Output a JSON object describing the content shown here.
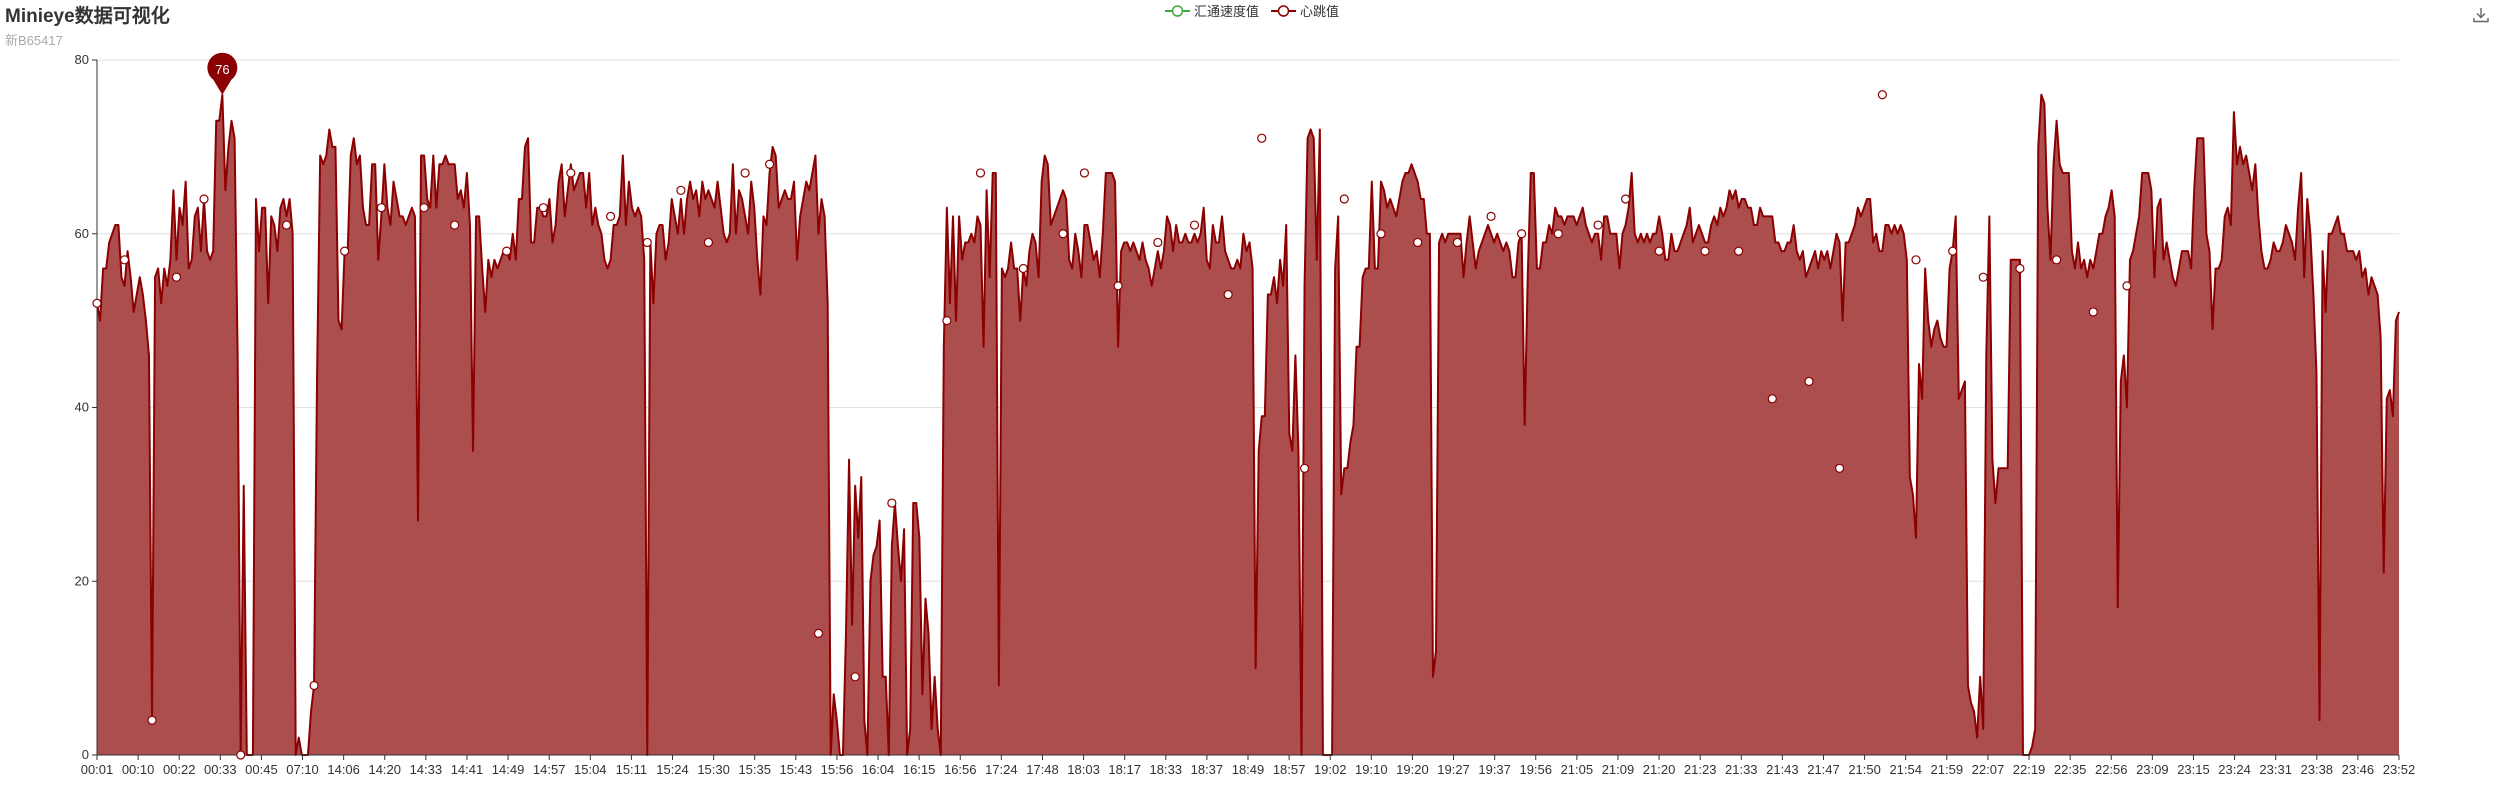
{
  "header": {
    "title": "Minieye数据可视化",
    "subtitle": "新B65417"
  },
  "legend": [
    {
      "name": "汇通速度值",
      "color": "#3fa83f"
    },
    {
      "name": "心跳值",
      "color": "#8b0000"
    }
  ],
  "toolbar": {
    "download_icon": "download-icon"
  },
  "chart_data": {
    "type": "area",
    "ylim": [
      0,
      80
    ],
    "yticks": [
      0,
      20,
      40,
      60,
      80
    ],
    "grid": true,
    "legend_position": "top-center",
    "fill_color": "#ad4e4e",
    "line_color": "#8b0000",
    "xticks": [
      "00:01",
      "00:10",
      "00:22",
      "00:33",
      "00:45",
      "07:10",
      "14:06",
      "14:20",
      "14:33",
      "14:41",
      "14:49",
      "14:57",
      "15:04",
      "15:11",
      "15:24",
      "15:30",
      "15:35",
      "15:43",
      "15:56",
      "16:04",
      "16:15",
      "16:56",
      "17:24",
      "17:48",
      "18:03",
      "18:17",
      "18:33",
      "18:37",
      "18:49",
      "18:57",
      "19:02",
      "19:10",
      "19:20",
      "19:27",
      "19:37",
      "19:56",
      "21:05",
      "21:09",
      "21:20",
      "21:23",
      "21:33",
      "21:43",
      "21:47",
      "21:50",
      "21:54",
      "21:59",
      "22:07",
      "22:19",
      "22:35",
      "22:56",
      "23:09",
      "23:15",
      "23:24",
      "23:31",
      "23:38",
      "23:46",
      "23:52"
    ],
    "series": [
      {
        "name": "心跳值",
        "values": [
          52,
          50,
          56,
          56,
          59,
          60,
          61,
          61,
          55,
          54,
          58,
          55,
          51,
          53,
          55,
          53,
          50,
          46,
          4,
          55,
          56,
          52,
          56,
          54,
          57,
          65,
          57,
          63,
          61,
          66,
          56,
          57,
          62,
          63,
          58,
          64,
          58,
          57,
          58,
          73,
          73,
          76,
          65,
          70,
          73,
          71,
          46,
          0,
          31,
          0,
          0,
          0,
          64,
          58,
          63,
          63,
          52,
          62,
          61,
          58,
          63,
          64,
          62,
          64,
          60,
          0,
          2,
          0,
          0,
          0,
          5,
          8,
          44,
          69,
          68,
          69,
          72,
          70,
          70,
          50,
          49,
          58,
          58,
          69,
          71,
          68,
          69,
          63,
          61,
          61,
          68,
          68,
          57,
          62,
          68,
          63,
          61,
          66,
          64,
          62,
          62,
          61,
          62,
          63,
          62,
          27,
          69,
          69,
          64,
          63,
          69,
          63,
          68,
          68,
          69,
          68,
          68,
          68,
          64,
          65,
          63,
          67,
          61,
          35,
          62,
          62,
          56,
          51,
          57,
          55,
          57,
          56,
          57,
          58,
          58,
          57,
          60,
          57,
          64,
          64,
          70,
          71,
          59,
          59,
          63,
          63,
          62,
          62,
          64,
          59,
          61,
          66,
          68,
          62,
          65,
          68,
          65,
          66,
          67,
          67,
          63,
          67,
          61,
          63,
          61,
          60,
          57,
          56,
          57,
          61,
          61,
          62,
          69,
          61,
          66,
          63,
          62,
          63,
          62,
          57,
          0,
          59,
          52,
          60,
          61,
          61,
          57,
          59,
          64,
          62,
          60,
          64,
          60,
          64,
          66,
          64,
          65,
          62,
          66,
          64,
          65,
          64,
          63,
          66,
          63,
          60,
          59,
          60,
          68,
          60,
          65,
          64,
          62,
          60,
          66,
          63,
          57,
          53,
          62,
          61,
          67,
          70,
          69,
          63,
          64,
          65,
          64,
          64,
          66,
          57,
          62,
          64,
          66,
          65,
          67,
          69,
          60,
          64,
          62,
          52,
          0,
          7,
          4,
          0,
          0,
          14,
          34,
          15,
          31,
          25,
          32,
          4,
          0,
          20,
          23,
          24,
          27,
          9,
          9,
          0,
          24,
          29,
          24,
          20,
          26,
          0,
          3,
          29,
          29,
          25,
          7,
          18,
          14,
          3,
          9,
          3,
          0,
          47,
          63,
          52,
          62,
          50,
          62,
          57,
          59,
          59,
          60,
          59,
          62,
          61,
          47,
          65,
          55,
          67,
          67,
          8,
          56,
          55,
          56,
          59,
          56,
          56,
          50,
          56,
          54,
          58,
          60,
          59,
          55,
          66,
          69,
          68,
          61,
          62,
          63,
          64,
          65,
          64,
          57,
          56,
          60,
          58,
          55,
          61,
          61,
          59,
          57,
          58,
          55,
          60,
          67,
          67,
          67,
          66,
          47,
          58,
          59,
          59,
          58,
          59,
          58,
          57,
          59,
          57,
          56,
          54,
          56,
          58,
          56,
          58,
          62,
          61,
          58,
          61,
          59,
          59,
          60,
          59,
          59,
          60,
          59,
          60,
          63,
          57,
          56,
          61,
          59,
          59,
          62,
          58,
          57,
          56,
          56,
          57,
          56,
          60,
          58,
          59,
          56,
          10,
          35,
          39,
          39,
          53,
          53,
          55,
          52,
          57,
          54,
          61,
          37,
          35,
          46,
          35,
          0,
          54,
          71,
          72,
          71,
          57,
          72,
          0,
          0,
          0,
          0,
          56,
          62,
          30,
          33,
          33,
          36,
          38,
          47,
          47,
          55,
          56,
          56,
          66,
          56,
          56,
          66,
          65,
          63,
          64,
          63,
          62,
          64,
          66,
          67,
          67,
          68,
          67,
          66,
          64,
          64,
          60,
          60,
          9,
          12,
          59,
          60,
          59,
          60,
          60,
          60,
          60,
          60,
          55,
          59,
          62,
          59,
          56,
          58,
          59,
          60,
          61,
          60,
          59,
          60,
          59,
          58,
          59,
          58,
          55,
          55,
          59,
          60,
          38,
          55,
          67,
          67,
          56,
          56,
          59,
          59,
          61,
          60,
          63,
          62,
          62,
          61,
          62,
          62,
          62,
          61,
          62,
          63,
          61,
          60,
          59,
          60,
          60,
          57,
          62,
          62,
          60,
          60,
          60,
          56,
          60,
          61,
          63,
          67,
          60,
          59,
          60,
          59,
          60,
          59,
          60,
          60,
          62,
          60,
          57,
          57,
          60,
          58,
          58,
          59,
          60,
          61,
          63,
          59,
          60,
          61,
          60,
          59,
          59,
          61,
          62,
          61,
          63,
          62,
          63,
          65,
          64,
          65,
          63,
          64,
          64,
          63,
          63,
          61,
          61,
          63,
          62,
          62,
          62,
          62,
          59,
          59,
          58,
          58,
          59,
          59,
          61,
          58,
          57,
          58,
          55,
          56,
          57,
          58,
          56,
          58,
          57,
          58,
          56,
          58,
          60,
          59,
          50,
          59,
          59,
          60,
          61,
          63,
          62,
          63,
          64,
          64,
          59,
          60,
          58,
          58,
          61,
          61,
          60,
          61,
          60,
          61,
          60,
          57,
          32,
          30,
          25,
          45,
          41,
          56,
          50,
          47,
          49,
          50,
          48,
          47,
          47,
          56,
          58,
          62,
          41,
          42,
          43,
          8,
          6,
          5,
          2,
          9,
          3,
          46,
          62,
          34,
          29,
          33,
          33,
          33,
          33,
          57,
          57,
          57,
          57,
          0,
          0,
          0,
          1,
          3,
          70,
          76,
          75,
          63,
          57,
          68,
          73,
          68,
          67,
          67,
          67,
          58,
          56,
          59,
          56,
          57,
          55,
          57,
          56,
          58,
          60,
          60,
          62,
          63,
          65,
          62,
          17,
          43,
          46,
          40,
          57,
          58,
          60,
          62,
          67,
          67,
          67,
          65,
          55,
          63,
          64,
          57,
          59,
          57,
          55,
          54,
          56,
          58,
          58,
          58,
          56,
          65,
          71,
          71,
          71,
          60,
          58,
          49,
          56,
          56,
          57,
          62,
          63,
          61,
          74,
          68,
          70,
          68,
          69,
          67,
          65,
          68,
          62,
          58,
          56,
          56,
          57,
          59,
          58,
          58,
          59,
          61,
          60,
          59,
          57,
          63,
          67,
          55,
          64,
          60,
          53,
          44,
          4,
          58,
          51,
          60,
          60,
          61,
          62,
          60,
          60,
          58,
          58,
          58,
          57,
          58,
          55,
          56,
          53,
          55,
          54,
          53,
          48,
          21,
          41,
          42,
          39,
          50,
          51
        ]
      }
    ],
    "highlight": {
      "label": "76",
      "value": 76
    },
    "markers": [
      {
        "x_index": 0,
        "value": 52
      },
      {
        "x_index": 9,
        "value": 57
      },
      {
        "x_index": 18,
        "value": 4
      },
      {
        "x_index": 26,
        "value": 55
      },
      {
        "x_index": 35,
        "value": 64
      },
      {
        "x_index": 47,
        "value": 0
      },
      {
        "x_index": 62,
        "value": 61
      },
      {
        "x_index": 71,
        "value": 8
      },
      {
        "x_index": 81,
        "value": 58
      },
      {
        "x_index": 93,
        "value": 63
      },
      {
        "x_index": 107,
        "value": 63
      },
      {
        "x_index": 117,
        "value": 61
      },
      {
        "x_index": 134,
        "value": 58
      },
      {
        "x_index": 146,
        "value": 63
      },
      {
        "x_index": 155,
        "value": 67
      },
      {
        "x_index": 168,
        "value": 62
      },
      {
        "x_index": 180,
        "value": 59
      },
      {
        "x_index": 191,
        "value": 65
      },
      {
        "x_index": 200,
        "value": 59
      },
      {
        "x_index": 212,
        "value": 67
      },
      {
        "x_index": 220,
        "value": 68
      },
      {
        "x_index": 236,
        "value": 14
      },
      {
        "x_index": 248,
        "value": 9
      },
      {
        "x_index": 260,
        "value": 29
      },
      {
        "x_index": 278,
        "value": 50
      },
      {
        "x_index": 289,
        "value": 67
      },
      {
        "x_index": 303,
        "value": 56
      },
      {
        "x_index": 316,
        "value": 60
      },
      {
        "x_index": 323,
        "value": 67
      },
      {
        "x_index": 334,
        "value": 54
      },
      {
        "x_index": 347,
        "value": 59
      },
      {
        "x_index": 359,
        "value": 61
      },
      {
        "x_index": 370,
        "value": 53
      },
      {
        "x_index": 381,
        "value": 71
      },
      {
        "x_index": 395,
        "value": 33
      },
      {
        "x_index": 408,
        "value": 64
      },
      {
        "x_index": 420,
        "value": 60
      },
      {
        "x_index": 432,
        "value": 59
      },
      {
        "x_index": 445,
        "value": 59
      },
      {
        "x_index": 456,
        "value": 62
      },
      {
        "x_index": 466,
        "value": 60
      },
      {
        "x_index": 478,
        "value": 60
      },
      {
        "x_index": 491,
        "value": 61
      },
      {
        "x_index": 500,
        "value": 64
      },
      {
        "x_index": 511,
        "value": 58
      },
      {
        "x_index": 526,
        "value": 58
      },
      {
        "x_index": 537,
        "value": 58
      },
      {
        "x_index": 548,
        "value": 41
      },
      {
        "x_index": 560,
        "value": 43
      },
      {
        "x_index": 570,
        "value": 33
      },
      {
        "x_index": 584,
        "value": 76
      },
      {
        "x_index": 595,
        "value": 57
      },
      {
        "x_index": 607,
        "value": 58
      },
      {
        "x_index": 617,
        "value": 55
      },
      {
        "x_index": 629,
        "value": 56
      },
      {
        "x_index": 641,
        "value": 57
      },
      {
        "x_index": 653,
        "value": 51
      },
      {
        "x_index": 664,
        "value": 54
      }
    ]
  }
}
